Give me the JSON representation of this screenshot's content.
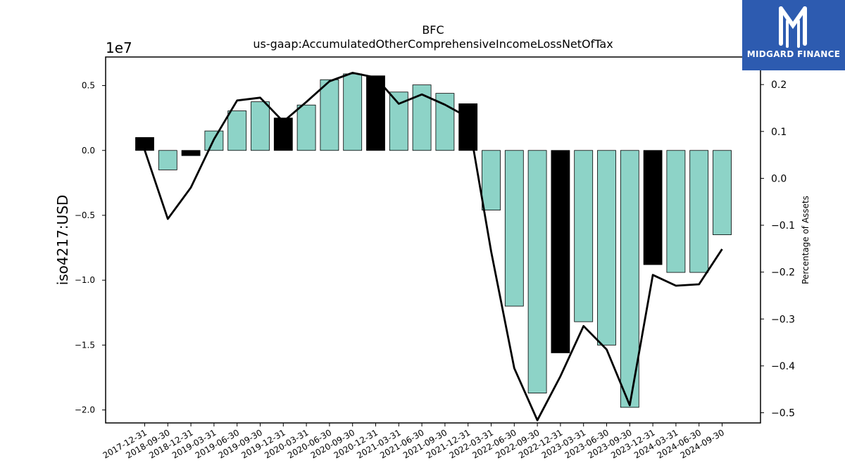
{
  "chart_data": {
    "type": "bar",
    "title": "BFC",
    "subtitle": "us-gaap:AccumulatedOtherComprehensiveIncomeLossNetOfTax",
    "ylabel": "iso4217:USD",
    "y_offset_label": "1e7",
    "y2label": "Percentage of Assets",
    "ylim": [
      -2.1,
      0.72
    ],
    "y2lim": [
      -0.5217,
      0.2588
    ],
    "yticks": [
      0.5,
      0.0,
      -0.5,
      -1.0,
      -1.5,
      -2.0
    ],
    "ytick_labels": [
      "0.5",
      "0.0",
      "−0.5",
      "−1.0",
      "−1.5",
      "−2.0"
    ],
    "y2ticks": [
      0.2,
      0.1,
      0.0,
      -0.1,
      -0.2,
      -0.3,
      -0.4,
      -0.5
    ],
    "y2tick_labels": [
      "0.2",
      "0.1",
      "0.0",
      "−0.1",
      "−0.2",
      "−0.3",
      "−0.4",
      "−0.5"
    ],
    "categories": [
      "2017-12-31",
      "2018-09-30",
      "2018-12-31",
      "2019-03-31",
      "2019-06-30",
      "2019-09-30",
      "2019-12-31",
      "2020-03-31",
      "2020-06-30",
      "2020-09-30",
      "2020-12-31",
      "2021-03-31",
      "2021-06-30",
      "2021-09-30",
      "2021-12-31",
      "2022-03-31",
      "2022-06-30",
      "2022-09-30",
      "2022-12-31",
      "2023-03-31",
      "2023-06-30",
      "2023-09-30",
      "2023-12-31",
      "2024-03-31",
      "2024-06-30",
      "2024-09-30"
    ],
    "series": [
      {
        "type": "bar",
        "values": [
          0.1,
          -0.15,
          -0.04,
          0.15,
          0.305,
          0.375,
          0.25,
          0.35,
          0.545,
          0.59,
          0.575,
          0.45,
          0.505,
          0.44,
          0.36,
          -0.46,
          -1.2,
          -1.87,
          -1.56,
          -1.32,
          -1.5,
          -1.98,
          -0.88,
          -0.94,
          -0.94,
          -0.65
        ],
        "highlight": [
          true,
          false,
          true,
          false,
          false,
          false,
          true,
          false,
          false,
          false,
          true,
          false,
          false,
          false,
          true,
          false,
          false,
          false,
          true,
          false,
          false,
          false,
          true,
          false,
          false,
          false
        ]
      },
      {
        "type": "line",
        "axis": "right",
        "values": [
          0.06,
          -0.0865,
          -0.0195,
          0.0835,
          0.166,
          0.172,
          0.121,
          0.163,
          0.207,
          0.225,
          0.215,
          0.159,
          0.179,
          0.157,
          0.13,
          -0.156,
          -0.405,
          -0.516,
          -0.422,
          -0.315,
          -0.365,
          -0.484,
          -0.206,
          -0.229,
          -0.226,
          -0.151
        ]
      }
    ],
    "colors": {
      "bar": "#8dd3c7",
      "bar_highlight": "#000000",
      "line": "#000000",
      "edge": "#000000"
    },
    "grid": false
  },
  "logo": {
    "text": "MIDGARD FINANCE",
    "background": "#2d5bb0",
    "icon": "midgard-m-icon"
  }
}
